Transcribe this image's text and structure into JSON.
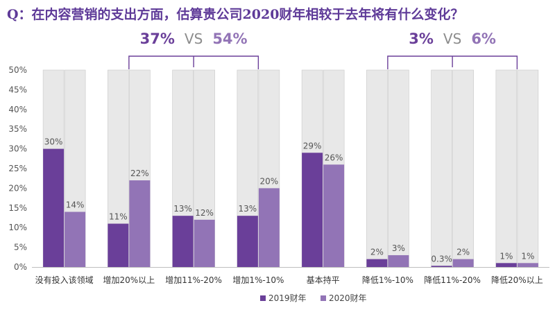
{
  "title": "Q：在内容营销的支出方面，估算贵公司2020财年相较于去年将有什么变化？",
  "colors": {
    "y2019": "#6a3f99",
    "y2020": "#9274b6",
    "bg": "#e8e8e8",
    "bracket": "#6a3f99",
    "title": "#5e3a98"
  },
  "comparisons": [
    {
      "left": "37%",
      "vs": "VS",
      "right": "54%",
      "from_category": 1,
      "to_category": 3
    },
    {
      "left": "3%",
      "vs": "VS",
      "right": "6%",
      "from_category": 5,
      "to_category": 7
    }
  ],
  "chart_data": {
    "type": "bar",
    "categories": [
      "没有投入该领域",
      "增加20%以上",
      "增加11%-20%",
      "增加1%-10%",
      "基本持平",
      "降低1%-10%",
      "降低11%-20%",
      "降低20%以上"
    ],
    "series": [
      {
        "name": "2019财年",
        "values": [
          30,
          11,
          13,
          13,
          29,
          2,
          0.3,
          1
        ],
        "labels": [
          "30%",
          "11%",
          "13%",
          "13%",
          "29%",
          "2%",
          "0.3%",
          "1%"
        ]
      },
      {
        "name": "2020财年",
        "values": [
          14,
          22,
          12,
          20,
          26,
          3,
          2,
          1
        ],
        "labels": [
          "14%",
          "22%",
          "12%",
          "20%",
          "26%",
          "3%",
          "2%",
          "1%"
        ]
      }
    ],
    "ylim": [
      0,
      50
    ],
    "yticks": [
      0,
      5,
      10,
      15,
      20,
      25,
      30,
      35,
      40,
      45,
      50
    ],
    "ytick_labels": [
      "0%",
      "5%",
      "10%",
      "15%",
      "20%",
      "25%",
      "30%",
      "35%",
      "40%",
      "45%",
      "50%"
    ],
    "background_max": 50,
    "legend_position": "bottom-center",
    "grid": false
  }
}
